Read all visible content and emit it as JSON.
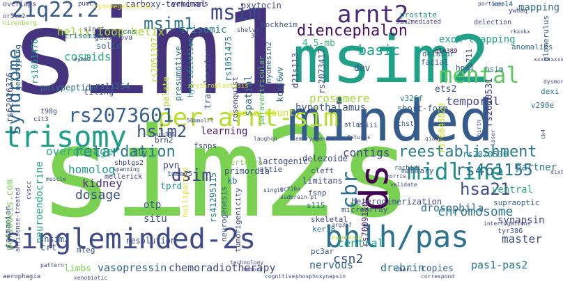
{
  "words": [
    {
      "text": "sim2s",
      "color": "#7ad151"
    },
    {
      "text": "sim1",
      "color": "#46337e"
    },
    {
      "text": "msim2",
      "color": "#1fa187"
    },
    {
      "text": "minded",
      "color": "#365c8d"
    },
    {
      "text": "trisomy",
      "color": "#1f9e89"
    },
    {
      "text": "singleminded-2s",
      "color": "#3e4a89"
    },
    {
      "text": "bhlh/pas",
      "color": "#2c728e"
    },
    {
      "text": "midline",
      "color": "#21918c"
    },
    {
      "text": "ds",
      "color": "#440154"
    },
    {
      "text": "per-arnt-sim",
      "color": "#b5de2b"
    },
    {
      "text": "rs2073601",
      "color": "#355f8d"
    },
    {
      "text": "21q22.2",
      "color": "#38598c"
    },
    {
      "text": "msim",
      "color": "#3e4a89"
    },
    {
      "text": "arnt2",
      "color": "#482878"
    },
    {
      "text": "mental",
      "color": "#5ec962"
    },
    {
      "text": "msim1",
      "color": "#2c728e"
    },
    {
      "text": "diencephalon",
      "color": "#470d60"
    },
    {
      "text": "reestablishment",
      "color": "#287c8e"
    },
    {
      "text": "retardation",
      "color": "#2a788e"
    },
    {
      "text": "hsim2",
      "color": "#3b528b"
    },
    {
      "text": "syndrome",
      "color": "#31688e"
    },
    {
      "text": "basic",
      "color": "#1fa088"
    },
    {
      "text": "hsa21",
      "color": "#3e4a89"
    },
    {
      "text": "rs461155",
      "color": "#2d708e"
    },
    {
      "text": "dsim",
      "color": "#424086"
    },
    {
      "text": "cbr",
      "color": "#2e6d8e"
    },
    {
      "text": "oxytocin",
      "color": "#404588"
    },
    {
      "text": "carboxy-terminal",
      "color": "#3f4788"
    },
    {
      "text": "helix-loop-helix",
      "color": "#aadc32"
    },
    {
      "text": "trisomic",
      "color": "#25848e"
    },
    {
      "text": "cosmids",
      "color": "#29af7f"
    },
    {
      "text": "4.5-mb",
      "color": "#38b977"
    },
    {
      "text": "ets2",
      "color": "#3a538b"
    },
    {
      "text": "exon-trapping",
      "color": "#20a386"
    },
    {
      "text": "temporal",
      "color": "#414487"
    },
    {
      "text": "prosomere",
      "color": "#9fda3a"
    },
    {
      "text": "hypothalamus",
      "color": "#3b528b"
    },
    {
      "text": "chromosome",
      "color": "#2b758e"
    },
    {
      "text": "drosophila",
      "color": "#2e6e8e"
    },
    {
      "text": "overdosage",
      "color": "#26ad81"
    },
    {
      "text": "learning",
      "color": "#471164"
    },
    {
      "text": "whole-mount",
      "color": "#d2e21b"
    },
    {
      "text": "contigs",
      "color": "#414487"
    },
    {
      "text": "homolog",
      "color": "#1e9b8a"
    },
    {
      "text": "kidney",
      "color": "#46327e"
    },
    {
      "text": "dosage",
      "color": "#3b528b"
    },
    {
      "text": "csn2",
      "color": "#3d4e8a"
    },
    {
      "text": "central",
      "color": "#22a785"
    },
    {
      "text": "nervous",
      "color": "#31688e"
    },
    {
      "text": "drebrin",
      "color": "#2e6f8e"
    },
    {
      "text": "pas1-pas2",
      "color": "#297a8e"
    },
    {
      "text": "master",
      "color": "#3e4c8a"
    },
    {
      "text": "synapsin",
      "color": "#414287"
    },
    {
      "text": "vasopressin",
      "color": "#32648e"
    },
    {
      "text": "chemoradiotherapy",
      "color": "#3f4889"
    },
    {
      "text": "limbs",
      "color": "#7fd34e"
    },
    {
      "text": "mapping",
      "color": "#2d718e"
    },
    {
      "text": "otp",
      "color": "#3a548c"
    },
    {
      "text": "situ",
      "color": "#3e4989"
    },
    {
      "text": "spatial",
      "color": "#2c718e"
    },
    {
      "text": "dev",
      "color": "#3a548c"
    },
    {
      "text": "pvn",
      "color": "#3f4788"
    },
    {
      "text": "tprd",
      "color": "#1f968b"
    },
    {
      "text": "crt",
      "color": "#3a538b"
    },
    {
      "text": "shsim2",
      "color": "#3b518b"
    },
    {
      "text": "ventral",
      "color": "#29af7f"
    },
    {
      "text": "partner",
      "color": "#2a778e"
    },
    {
      "text": "copies",
      "color": "#32658e"
    },
    {
      "text": "rs2070531",
      "color": "#424086"
    },
    {
      "text": "rs2070530",
      "color": "#24878e"
    },
    {
      "text": "rs1051475",
      "color": "#297b8e"
    },
    {
      "text": "rs2073417",
      "color": "#3b528b"
    },
    {
      "text": "rs11254",
      "color": "#2d708e"
    },
    {
      "text": "rs2051397",
      "color": "#b8de29"
    },
    {
      "text": "rs1051476",
      "color": "#1f988b"
    },
    {
      "text": "rs62026376",
      "color": "#3d4d8a"
    },
    {
      "text": "rs41295115",
      "color": "#297b8e"
    },
    {
      "text": "rs76043829",
      "color": "#cde11d"
    },
    {
      "text": "rs7009110",
      "color": "#482576"
    },
    {
      "text": "palate",
      "color": "#b5de2b"
    },
    {
      "text": "genotyping",
      "color": "#32658e"
    },
    {
      "text": "polypeptide",
      "color": "#2d708e"
    },
    {
      "text": "tiling",
      "color": "#39568c"
    },
    {
      "text": "solid",
      "color": "#31688e"
    },
    {
      "text": "presumptive",
      "color": "#2c738e"
    },
    {
      "text": "hybridization",
      "color": "#1f9a8a"
    },
    {
      "text": "translocator",
      "color": "#39558c"
    },
    {
      "text": "rosenquist",
      "color": "#3f4788"
    },
    {
      "text": "paraventricular",
      "color": "#5ec962"
    },
    {
      "text": "myomesin2",
      "color": "#31688e"
    },
    {
      "text": "d21s113",
      "color": "#3e4a89"
    },
    {
      "text": "kcnj6wv",
      "color": "#2b748e"
    },
    {
      "text": "fsnps",
      "color": "#3e4a89"
    },
    {
      "text": "short-form",
      "color": "#365d8d"
    },
    {
      "text": "hpe1",
      "color": "#38598c"
    },
    {
      "text": "hsim",
      "color": "#2c718e"
    },
    {
      "text": "rs711",
      "color": "#3b528b"
    },
    {
      "text": "gln389",
      "color": "#440154"
    },
    {
      "text": "v326f",
      "color": "#228c8d"
    },
    {
      "text": "v290e",
      "color": "#2c728e"
    },
    {
      "text": "dexi",
      "color": "#2a788e"
    },
    {
      "text": "glomerulus",
      "color": "#39568c"
    },
    {
      "text": "anomalies",
      "color": "#2e6d8e"
    },
    {
      "text": "ker14",
      "color": "#34608d"
    },
    {
      "text": "ywhaq",
      "color": "#404688"
    },
    {
      "text": "delection",
      "color": "#3e4c8a"
    },
    {
      "text": "delabar",
      "color": "#2a768e"
    },
    {
      "text": "facial",
      "color": "#38588c"
    },
    {
      "text": "prostate",
      "color": "#1f958b"
    },
    {
      "text": "sim2mediated",
      "color": "#414487"
    },
    {
      "text": "bockheim",
      "color": "#365c8d"
    },
    {
      "text": "vekemans",
      "color": "#424086"
    },
    {
      "text": "shelves",
      "color": "#3c4f8a"
    },
    {
      "text": "cns",
      "color": "#2e6e8e"
    },
    {
      "text": "trisomia",
      "color": "#2a788e"
    },
    {
      "text": "lactogenic",
      "color": "#3e4989"
    },
    {
      "text": "attie",
      "color": "#3a538b"
    },
    {
      "text": "vertebra",
      "color": "#84d44b"
    },
    {
      "text": "primordia",
      "color": "#3a548c"
    },
    {
      "text": "delezoide",
      "color": "#3f4788"
    },
    {
      "text": "cleft",
      "color": "#3d4e8a"
    },
    {
      "text": "limitans",
      "color": "#3e4c8a"
    },
    {
      "text": "kb",
      "color": "#2e6f8e"
    },
    {
      "text": "ker18",
      "color": "#2b758e"
    },
    {
      "text": "skeletal",
      "color": "#3f4788"
    },
    {
      "text": "microarray",
      "color": "#3e4a89"
    },
    {
      "text": "heterodimerization",
      "color": "#3d4e8a"
    },
    {
      "text": "supraoptic",
      "color": "#33638d"
    },
    {
      "text": "neurogenesis",
      "color": "#39558c"
    },
    {
      "text": "tumorigenicity",
      "color": "#3f4889"
    },
    {
      "text": "nulliparous",
      "color": "#dde318"
    },
    {
      "text": "neuroendocrine",
      "color": "#21a685"
    },
    {
      "text": "mcf10dcis.com",
      "color": "#7ad151"
    },
    {
      "text": "resolution",
      "color": "#3f4788"
    },
    {
      "text": "mteg",
      "color": "#3a538b"
    },
    {
      "text": "tmem75",
      "color": "#3b528b"
    },
    {
      "text": "shptgs2",
      "color": "#3e4989"
    },
    {
      "text": "mellerick",
      "color": "#424086"
    },
    {
      "text": "fly",
      "color": "#31688e"
    },
    {
      "text": "brn2",
      "color": "#3e4a89"
    },
    {
      "text": "tasmanian",
      "color": "#38598c"
    },
    {
      "text": "pc3ar",
      "color": "#3b528b"
    },
    {
      "text": "s115",
      "color": "#2b748e"
    },
    {
      "text": "fsnp",
      "color": "#3e4a89"
    },
    {
      "text": "mammary",
      "color": "#3b528b"
    },
    {
      "text": "chst2",
      "color": "#39568c"
    },
    {
      "text": "tyr386",
      "color": "#3b528b"
    },
    {
      "text": "cytomegalovirus",
      "color": "#e5e419"
    },
    {
      "text": "erythroblastosis",
      "color": "#d8e219"
    },
    {
      "text": "gassanova",
      "color": "#3d4e8a"
    },
    {
      "text": "sinet",
      "color": "#3e4989"
    },
    {
      "text": "iiiii",
      "color": "#3e4a89"
    },
    {
      "text": "atlas",
      "color": "#39568c"
    },
    {
      "text": "rachidi",
      "color": "#3a548c"
    },
    {
      "text": "overlaps",
      "color": "#404588"
    },
    {
      "text": "pumc",
      "color": "#3e4a89"
    },
    {
      "text": "or5le2",
      "color": "#3e4a89"
    },
    {
      "text": "nirenberg",
      "color": "#95d840"
    },
    {
      "text": "myom2",
      "color": "#3e4a89"
    },
    {
      "text": "cit3",
      "color": "#3e4a89"
    },
    {
      "text": "t98g",
      "color": "#3e4989"
    },
    {
      "text": "technology",
      "color": "#3e4a89"
    },
    {
      "text": "memory",
      "color": "#3e4a89"
    },
    {
      "text": "aerophagia",
      "color": "#3e4a89"
    },
    {
      "text": "xenobiotic",
      "color": "#3e4a89"
    },
    {
      "text": "cognitive",
      "color": "#3e4a89"
    },
    {
      "text": "phosphosynapsin",
      "color": "#3e4a89"
    },
    {
      "text": "hhari",
      "color": "#3e4a89"
    },
    {
      "text": "correspond",
      "color": "#3e4a89"
    },
    {
      "text": "interrogations",
      "color": "#3e4a89"
    },
    {
      "text": "validate",
      "color": "#3e4a89"
    },
    {
      "text": "morris",
      "color": "#3e4a89"
    },
    {
      "text": "spanning",
      "color": "#3e4a89"
    },
    {
      "text": "muscle",
      "color": "#3e4a89"
    },
    {
      "text": "cvscc",
      "color": "#3e4a89"
    },
    {
      "text": "antisense-treated",
      "color": "#3e4a89"
    },
    {
      "text": "sudbrain-pl",
      "color": "#3e4a89"
    },
    {
      "text": "mcf10a",
      "color": "#3e4a89"
    },
    {
      "text": "arg367",
      "color": "#3e4a89"
    },
    {
      "text": "hypotonia",
      "color": "#b5de2b"
    },
    {
      "text": "embryogenesis",
      "color": "#3e4a89"
    },
    {
      "text": "qiamp",
      "color": "#3e4a89"
    },
    {
      "text": "laughon",
      "color": "#3e4a89"
    },
    {
      "text": "fetuses",
      "color": "#3e4a89"
    },
    {
      "text": "3d",
      "color": "#3e4a89"
    },
    {
      "text": "pattern",
      "color": "#3e4a89"
    },
    {
      "text": "pro385",
      "color": "#3e4a89"
    },
    {
      "text": "50mmol/l",
      "color": "#3e4a89"
    },
    {
      "text": "single",
      "color": "#3e4a89"
    },
    {
      "text": "dlxt",
      "color": "#3e4a89"
    },
    {
      "text": "ck4",
      "color": "#3e4a89"
    },
    {
      "text": "laser",
      "color": "#3e4a89"
    },
    {
      "text": "birth",
      "color": "#3e4a89"
    },
    {
      "text": "dysmorphies",
      "color": "#3e4a89"
    },
    {
      "text": "portions",
      "color": "#3e4a89"
    },
    {
      "text": "rkxxkx",
      "color": "#3e4a89"
    },
    {
      "text": "xxxxxxxxxxxxy",
      "color": "#3e4a89"
    },
    {
      "text": "ssm2",
      "color": "#3e4a89"
    }
  ]
}
